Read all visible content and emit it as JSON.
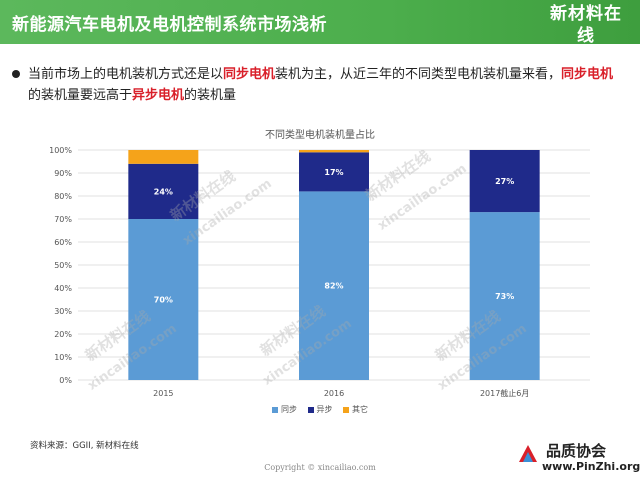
{
  "header": {
    "title": "新能源汽车电机及电机控制系统市场浅析",
    "logo_cn": "新材料在线",
    "logo_en": "xincailiao.com"
  },
  "bullet": {
    "t1": "当前市场上的电机装机方式还是以",
    "h1": "同步电机",
    "t2": "装机为主，从近三年的不同类型电机装机量来看，",
    "h2": "同步电机",
    "t3": "的装机量要远高于",
    "h3": "异步电机",
    "t4": "的装机量"
  },
  "colors": {
    "sync": "#5b9bd5",
    "async": "#1f2a8a",
    "other": "#f5a31a",
    "highlight": "#d9202a",
    "header": "#4cae4c"
  },
  "chart_data": {
    "type": "bar",
    "stacked": true,
    "title": "不同类型电机装机量占比",
    "categories": [
      "2015",
      "2016",
      "2017截止6月"
    ],
    "series": [
      {
        "name": "同步",
        "values": [
          70,
          82,
          73
        ],
        "labels": [
          "70%",
          "82%",
          "73%"
        ],
        "color": "#5b9bd5"
      },
      {
        "name": "异步",
        "values": [
          24,
          17,
          27
        ],
        "labels": [
          "24%",
          "17%",
          "27%"
        ],
        "color": "#1f2a8a"
      },
      {
        "name": "其它",
        "values": [
          6,
          1,
          0
        ],
        "labels": [
          "",
          "",
          ""
        ],
        "color": "#f5a31a"
      }
    ],
    "yticks": [
      "0%",
      "10%",
      "20%",
      "30%",
      "40%",
      "50%",
      "60%",
      "70%",
      "80%",
      "90%",
      "100%"
    ],
    "ylim": [
      0,
      100
    ],
    "grid": true,
    "legend_position": "bottom"
  },
  "source": "资料来源：GGII, 新材料在线",
  "copyright": "Copyright © xincailiao.com",
  "pinzhi": {
    "cn": "品质协会",
    "en": "www.PinZhi.org"
  },
  "watermark": {
    "cn": "新材料在线",
    "en": "xincailiao.com"
  }
}
